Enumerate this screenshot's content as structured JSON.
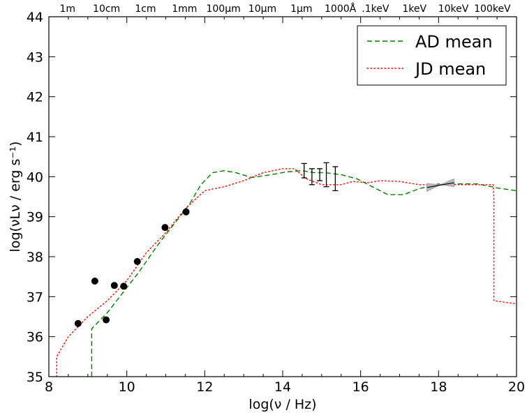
{
  "chart_data": {
    "type": "scatter",
    "xlabel": "log(ν / Hz)",
    "ylabel": "log(νLν / erg s⁻¹)",
    "xlim": [
      8,
      20
    ],
    "ylim": [
      35,
      44
    ],
    "x_ticks": [
      8,
      10,
      12,
      14,
      16,
      18,
      20
    ],
    "y_ticks": [
      35,
      36,
      37,
      38,
      39,
      40,
      41,
      42,
      43,
      44
    ],
    "top_axis_labels": [
      {
        "label": "1m",
        "x": 8.48
      },
      {
        "label": "10cm",
        "x": 9.48
      },
      {
        "label": "1cm",
        "x": 10.48
      },
      {
        "label": "1mm",
        "x": 11.48
      },
      {
        "label": "100μm",
        "x": 12.48
      },
      {
        "label": "10μm",
        "x": 13.48
      },
      {
        "label": "1μm",
        "x": 14.48
      },
      {
        "label": "1000Å",
        "x": 15.48
      },
      {
        "label": ".1keV",
        "x": 16.38
      },
      {
        "label": "1keV",
        "x": 17.38
      },
      {
        "label": "10keV",
        "x": 18.38
      },
      {
        "label": "100keV",
        "x": 19.38
      }
    ],
    "legend": {
      "position": "top-right"
    },
    "series": [
      {
        "name": "AD mean",
        "kind": "line",
        "color": "#007f00",
        "dash": "dashed",
        "x": [
          9.1,
          9.1,
          9.1,
          9.2,
          9.5,
          9.9,
          10.3,
          10.8,
          11.2,
          11.6,
          11.9,
          12.2,
          12.5,
          12.8,
          13.2,
          13.7,
          14.1,
          14.5,
          14.8,
          15.1,
          15.5,
          15.9,
          16.3,
          16.7,
          17.1,
          17.5,
          18.0,
          18.5,
          19.0,
          19.5,
          20.0
        ],
        "y": [
          35.0,
          35.9,
          36.2,
          36.3,
          36.6,
          37.1,
          37.6,
          38.3,
          38.8,
          39.3,
          39.8,
          40.1,
          40.15,
          40.1,
          39.98,
          40.05,
          40.12,
          40.15,
          40.1,
          40.1,
          40.05,
          39.95,
          39.75,
          39.55,
          39.55,
          39.7,
          39.82,
          39.82,
          39.82,
          39.72,
          39.65
        ]
      },
      {
        "name": "JD mean",
        "kind": "line",
        "color": "#ff0000",
        "dash": "dotted",
        "x": [
          8.2,
          8.2,
          8.5,
          9.0,
          9.5,
          10.0,
          10.5,
          11.0,
          11.5,
          12.0,
          12.5,
          13.0,
          13.5,
          14.0,
          14.3,
          14.6,
          15.0,
          15.5,
          15.8,
          16.2,
          16.5,
          17.0,
          17.5,
          18.0,
          18.5,
          19.0,
          19.4,
          19.42,
          19.42,
          20.0
        ],
        "y": [
          35.0,
          35.5,
          36.0,
          36.5,
          36.9,
          37.4,
          38.1,
          38.6,
          39.2,
          39.65,
          39.75,
          39.9,
          40.1,
          40.2,
          40.2,
          39.95,
          39.8,
          39.8,
          39.88,
          39.85,
          39.9,
          39.88,
          39.8,
          39.8,
          39.8,
          39.8,
          39.8,
          39.5,
          36.9,
          36.82
        ]
      },
      {
        "name": "",
        "kind": "points",
        "color": "#000000",
        "x": [
          8.75,
          9.18,
          9.47,
          9.68,
          9.92,
          10.27,
          10.98,
          11.52
        ],
        "y": [
          36.33,
          37.39,
          36.42,
          37.28,
          37.26,
          37.88,
          38.73,
          39.12
        ]
      },
      {
        "name": "",
        "kind": "errorbars",
        "color": "#000000",
        "x": [
          14.55,
          14.75,
          14.95,
          15.12,
          15.35
        ],
        "y": [
          40.15,
          40.0,
          40.05,
          40.05,
          39.95
        ],
        "err_lo": [
          0.18,
          0.2,
          0.15,
          0.3,
          0.3
        ],
        "err_hi": [
          0.18,
          0.2,
          0.15,
          0.3,
          0.3
        ]
      },
      {
        "name": "",
        "kind": "bowtie",
        "color": "#999999",
        "x": [
          17.7,
          18.05,
          18.4
        ],
        "y": [
          39.73,
          39.8,
          39.85
        ],
        "halfwidth_at_ends": 0.1
      }
    ]
  }
}
